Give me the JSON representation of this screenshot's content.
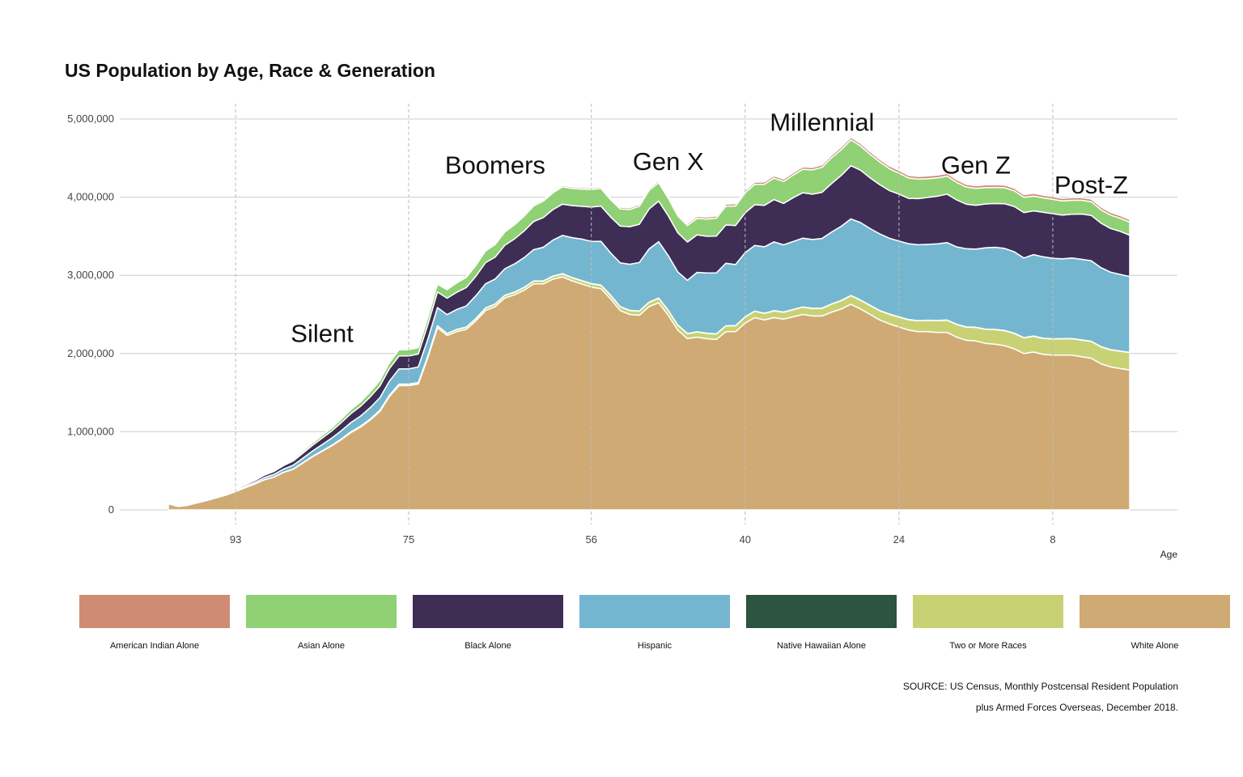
{
  "chart_data": {
    "type": "area",
    "stacked": true,
    "title": "US Population by Age, Race & Generation",
    "xlabel": "Age",
    "ylabel": "",
    "x_axis_reversed": true,
    "xlim": [
      0,
      100
    ],
    "ylim": [
      0,
      5000000
    ],
    "x_ticks": [
      93,
      75,
      56,
      40,
      24,
      8
    ],
    "y_ticks": [
      {
        "value": 0,
        "label": "0"
      },
      {
        "value": 1000000,
        "label": "1,000,000"
      },
      {
        "value": 2000000,
        "label": "2,000,000"
      },
      {
        "value": 3000000,
        "label": "3,000,000"
      },
      {
        "value": 4000000,
        "label": "4,000,000"
      },
      {
        "value": 5000000,
        "label": "5,000,000"
      }
    ],
    "grid": true,
    "legend_position": "bottom",
    "generation_boundaries": [
      93,
      75,
      56,
      40,
      24,
      8
    ],
    "generation_labels": [
      {
        "label": "Silent",
        "x": 84,
        "y": 2150000
      },
      {
        "label": "Boomers",
        "x": 66,
        "y": 4300000
      },
      {
        "label": "Gen X",
        "x": 48,
        "y": 4350000
      },
      {
        "label": "Millennial",
        "x": 32,
        "y": 4850000
      },
      {
        "label": "Gen Z",
        "x": 16,
        "y": 4300000
      },
      {
        "label": "Post-Z",
        "x": 4,
        "y": 4050000
      }
    ],
    "x": [
      100,
      99,
      98,
      97,
      96,
      95,
      94,
      93,
      92,
      91,
      90,
      89,
      88,
      87,
      86,
      85,
      84,
      83,
      82,
      81,
      80,
      79,
      78,
      77,
      76,
      75,
      74,
      73,
      72,
      71,
      70,
      69,
      68,
      67,
      66,
      65,
      64,
      63,
      62,
      61,
      60,
      59,
      58,
      57,
      56,
      55,
      54,
      53,
      52,
      51,
      50,
      49,
      48,
      47,
      46,
      45,
      44,
      43,
      42,
      41,
      40,
      39,
      38,
      37,
      36,
      35,
      34,
      33,
      32,
      31,
      30,
      29,
      28,
      27,
      26,
      25,
      24,
      23,
      22,
      21,
      20,
      19,
      18,
      17,
      16,
      15,
      14,
      13,
      12,
      11,
      10,
      9,
      8,
      7,
      6,
      5,
      4,
      3,
      2,
      1,
      0
    ],
    "series": [
      {
        "name": "White Alone",
        "color": "#D0AA74",
        "values": [
          80000,
          45000,
          60000,
          90000,
          120000,
          155000,
          190000,
          235000,
          285000,
          330000,
          385000,
          420000,
          480000,
          520000,
          600000,
          680000,
          750000,
          820000,
          900000,
          990000,
          1060000,
          1150000,
          1260000,
          1450000,
          1590000,
          1590000,
          1610000,
          1950000,
          2330000,
          2230000,
          2280000,
          2310000,
          2420000,
          2550000,
          2600000,
          2710000,
          2750000,
          2810000,
          2890000,
          2890000,
          2950000,
          2980000,
          2930000,
          2890000,
          2850000,
          2830000,
          2700000,
          2550000,
          2500000,
          2490000,
          2600000,
          2650000,
          2490000,
          2300000,
          2190000,
          2210000,
          2190000,
          2180000,
          2280000,
          2280000,
          2390000,
          2460000,
          2430000,
          2460000,
          2440000,
          2470000,
          2500000,
          2480000,
          2480000,
          2530000,
          2570000,
          2630000,
          2570000,
          2500000,
          2430000,
          2380000,
          2340000,
          2300000,
          2280000,
          2280000,
          2270000,
          2270000,
          2210000,
          2170000,
          2160000,
          2130000,
          2120000,
          2100000,
          2060000,
          2000000,
          2020000,
          1990000,
          1980000,
          1980000,
          1980000,
          1960000,
          1940000,
          1870000,
          1830000,
          1810000,
          1790000
        ]
      },
      {
        "name": "Two or More Races",
        "color": "#C8D274",
        "values": [
          500,
          400,
          500,
          600,
          700,
          900,
          1100,
          1300,
          1600,
          1900,
          2200,
          2600,
          3000,
          3500,
          4200,
          5000,
          5800,
          6700,
          7800,
          9000,
          10000,
          12000,
          14000,
          16000,
          18000,
          18000,
          18000,
          22000,
          26000,
          26000,
          27000,
          28000,
          29000,
          31000,
          32000,
          33000,
          34000,
          35000,
          36000,
          37000,
          38000,
          39000,
          40000,
          41000,
          42000,
          44000,
          46000,
          48000,
          50000,
          52000,
          55000,
          58000,
          60000,
          62000,
          64000,
          66000,
          68000,
          70000,
          73000,
          75000,
          78000,
          81000,
          83000,
          86000,
          88000,
          91000,
          94000,
          96000,
          99000,
          102000,
          106000,
          110000,
          112000,
          115000,
          118000,
          122000,
          126000,
          132000,
          138000,
          144000,
          150000,
          156000,
          162000,
          168000,
          174000,
          180000,
          186000,
          192000,
          198000,
          200000,
          202000,
          204000,
          206000,
          208000,
          210000,
          212000,
          214000,
          216000,
          218000,
          220000,
          222000
        ]
      },
      {
        "name": "Native Hawaiian Alone",
        "color": "#2C5440",
        "values": [
          100,
          60,
          80,
          110,
          140,
          170,
          200,
          240,
          290,
          330,
          380,
          410,
          460,
          500,
          560,
          620,
          680,
          740,
          800,
          860,
          920,
          980,
          1050,
          1150,
          1250,
          1250,
          1260,
          1450,
          1650,
          1650,
          1700,
          1750,
          1800,
          1850,
          1900,
          2000,
          2050,
          2100,
          2150,
          2200,
          2250,
          2300,
          2300,
          2300,
          2300,
          2300,
          2300,
          2300,
          2300,
          2300,
          2350,
          2400,
          2400,
          2400,
          2400,
          2400,
          2400,
          2400,
          2400,
          2400,
          2450,
          2500,
          2500,
          2550,
          2550,
          2600,
          2650,
          2700,
          2750,
          2800,
          2850,
          2900,
          2900,
          2900,
          2900,
          2900,
          2900,
          2900,
          2900,
          2900,
          2900,
          2900,
          2900,
          2900,
          2900,
          2900,
          2900,
          2900,
          2900,
          2900,
          2900,
          2900,
          2900,
          2900,
          2900,
          2900,
          2900,
          2900,
          2900,
          2900,
          2900
        ]
      },
      {
        "name": "Hispanic",
        "color": "#74B6D0",
        "values": [
          1000,
          800,
          1200,
          2000,
          3000,
          4500,
          6500,
          9000,
          13000,
          19000,
          26000,
          32000,
          40000,
          48000,
          58000,
          68000,
          80000,
          92000,
          105000,
          118000,
          130000,
          145000,
          160000,
          180000,
          195000,
          195000,
          200000,
          215000,
          230000,
          240000,
          255000,
          270000,
          290000,
          310000,
          320000,
          340000,
          360000,
          380000,
          400000,
          430000,
          460000,
          490000,
          510000,
          530000,
          540000,
          560000,
          540000,
          560000,
          590000,
          620000,
          680000,
          720000,
          700000,
          680000,
          680000,
          760000,
          770000,
          780000,
          800000,
          780000,
          820000,
          840000,
          850000,
          880000,
          860000,
          870000,
          880000,
          880000,
          890000,
          920000,
          950000,
          980000,
          990000,
          980000,
          980000,
          970000,
          970000,
          970000,
          970000,
          970000,
          980000,
          990000,
          990000,
          1000000,
          1000000,
          1040000,
          1050000,
          1050000,
          1040000,
          1020000,
          1040000,
          1040000,
          1030000,
          1020000,
          1030000,
          1030000,
          1030000,
          1010000,
          990000,
          980000,
          970000
        ]
      },
      {
        "name": "Black Alone",
        "color": "#3E2D54",
        "values": [
          3000,
          2500,
          3000,
          4500,
          6000,
          8000,
          11000,
          15000,
          20000,
          25000,
          32000,
          38000,
          45000,
          54000,
          63000,
          72000,
          82000,
          92000,
          104000,
          115000,
          125000,
          138000,
          150000,
          160000,
          165000,
          165000,
          165000,
          185000,
          200000,
          210000,
          220000,
          235000,
          250000,
          270000,
          280000,
          300000,
          320000,
          340000,
          360000,
          380000,
          390000,
          400000,
          410000,
          420000,
          440000,
          450000,
          460000,
          470000,
          480000,
          490000,
          510000,
          520000,
          510000,
          500000,
          490000,
          480000,
          470000,
          470000,
          490000,
          500000,
          510000,
          520000,
          530000,
          540000,
          530000,
          560000,
          580000,
          580000,
          590000,
          620000,
          650000,
          680000,
          670000,
          650000,
          630000,
          610000,
          600000,
          580000,
          590000,
          600000,
          610000,
          620000,
          600000,
          570000,
          560000,
          560000,
          560000,
          570000,
          580000,
          580000,
          560000,
          570000,
          570000,
          560000,
          560000,
          580000,
          580000,
          570000,
          560000,
          550000,
          530000
        ]
      },
      {
        "name": "Asian Alone",
        "color": "#8FD174",
        "values": [
          800,
          600,
          1000,
          1500,
          2200,
          3000,
          4200,
          5800,
          8000,
          10000,
          13000,
          16000,
          19000,
          22000,
          26000,
          30000,
          35000,
          40000,
          46000,
          52000,
          58000,
          64000,
          70000,
          76000,
          80000,
          80000,
          82000,
          92000,
          100000,
          110000,
          120000,
          130000,
          140000,
          150000,
          160000,
          170000,
          180000,
          190000,
          200000,
          210000,
          215000,
          220000,
          220000,
          220000,
          225000,
          225000,
          220000,
          220000,
          220000,
          230000,
          240000,
          235000,
          225000,
          215000,
          210000,
          210000,
          220000,
          230000,
          240000,
          250000,
          255000,
          260000,
          270000,
          275000,
          280000,
          290000,
          300000,
          310000,
          320000,
          330000,
          330000,
          330000,
          310000,
          300000,
          290000,
          280000,
          270000,
          260000,
          250000,
          240000,
          235000,
          230000,
          225000,
          220000,
          215000,
          210000,
          205000,
          205000,
          200000,
          195000,
          190000,
          185000,
          183000,
          180000,
          178000,
          176000,
          174000,
          172000,
          170000,
          168000,
          165000
        ]
      },
      {
        "name": "American Indian Alone",
        "color": "#D08B74",
        "values": [
          200,
          150,
          200,
          300,
          400,
          550,
          700,
          900,
          1100,
          1400,
          1700,
          2000,
          2400,
          2800,
          3200,
          3700,
          4200,
          4700,
          5300,
          5900,
          6500,
          7200,
          8000,
          8800,
          9500,
          9500,
          9700,
          10500,
          12000,
          12500,
          13000,
          13500,
          14000,
          14500,
          15000,
          15500,
          16000,
          16500,
          17000,
          17500,
          18000,
          18500,
          19000,
          19500,
          20000,
          20500,
          21000,
          21500,
          22000,
          22500,
          23000,
          23500,
          24000,
          24500,
          25000,
          25500,
          26000,
          26500,
          27000,
          27500,
          28000,
          28500,
          29000,
          29500,
          30000,
          30500,
          31000,
          31500,
          32000,
          32500,
          33000,
          33500,
          34000,
          34000,
          34000,
          34000,
          34000,
          34000,
          34000,
          34000,
          34000,
          34000,
          34000,
          34000,
          34000,
          34000,
          34000,
          34000,
          34000,
          34000,
          34000,
          34000,
          34000,
          34000,
          34000,
          34000,
          34000,
          34000,
          34000,
          34000,
          34000
        ]
      }
    ],
    "legend": [
      {
        "label": "American Indian Alone",
        "color": "#D08B74"
      },
      {
        "label": "Asian Alone",
        "color": "#8FD174"
      },
      {
        "label": "Black Alone",
        "color": "#3E2D54"
      },
      {
        "label": "Hispanic",
        "color": "#74B6D0"
      },
      {
        "label": "Native Hawaiian Alone",
        "color": "#2C5440"
      },
      {
        "label": "Two or More Races",
        "color": "#C8D274"
      },
      {
        "label": "White Alone",
        "color": "#D0AA74"
      }
    ]
  },
  "source": {
    "line1": "SOURCE: US Census, Monthly Postcensal Resident Population",
    "line2": "plus Armed Forces Overseas, December 2018."
  }
}
